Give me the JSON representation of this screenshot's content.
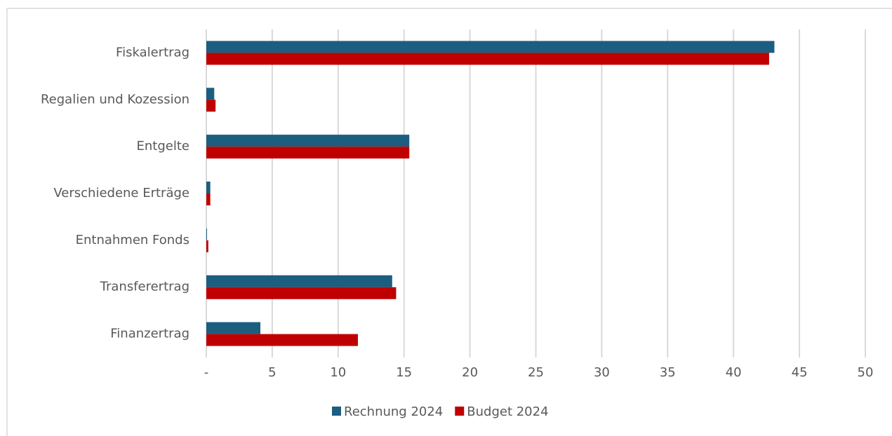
{
  "chart_data": {
    "type": "bar",
    "orientation": "horizontal",
    "categories": [
      "Fiskalertrag",
      "Regalien und Kozession",
      "Entgelte",
      "Verschiedene Erträge",
      "Entnahmen Fonds",
      "Transferertrag",
      "Finanzertrag"
    ],
    "series": [
      {
        "name": "Rechnung 2024",
        "color": "#1b5e80",
        "values": [
          43.1,
          0.6,
          15.4,
          0.3,
          0.05,
          14.1,
          4.1
        ]
      },
      {
        "name": "Budget 2024",
        "color": "#c00000",
        "values": [
          42.7,
          0.7,
          15.4,
          0.3,
          0.15,
          14.4,
          11.5
        ]
      }
    ],
    "xlim": [
      0,
      50
    ],
    "xticks": [
      {
        "value": 0,
        "label": "-"
      },
      5,
      10,
      15,
      20,
      25,
      30,
      35,
      40,
      45,
      50
    ],
    "grid": true,
    "legend": "bottom"
  }
}
